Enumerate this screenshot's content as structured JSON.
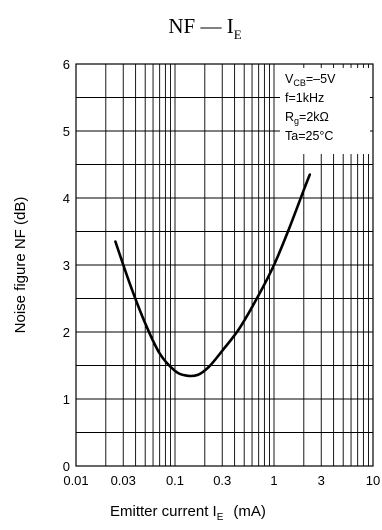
{
  "chart_data": {
    "type": "line",
    "title": {
      "main": "NF — I",
      "sub": "E"
    },
    "xlabel": {
      "main": "Emitter current  I",
      "sub": "E",
      "unit": "(mA)"
    },
    "ylabel": "Noise figure  NF   (dB)",
    "x_scale": "log",
    "xlim": [
      0.01,
      10
    ],
    "ylim": [
      0,
      6
    ],
    "x_ticks": [
      0.01,
      0.03,
      0.1,
      0.3,
      1,
      3,
      10
    ],
    "x_tick_labels": [
      "0.01",
      "0.03",
      "0.1",
      "0.3",
      "1",
      "3",
      "10"
    ],
    "y_ticks": [
      0,
      1,
      2,
      3,
      4,
      5,
      6
    ],
    "y_tick_labels": [
      "0",
      "1",
      "2",
      "3",
      "4",
      "5",
      "6"
    ],
    "grid": true,
    "conditions": [
      {
        "main": "V",
        "sub": "CB",
        "rest": "=–5V"
      },
      {
        "main": "f=1kHz",
        "sub": "",
        "rest": ""
      },
      {
        "main": "R",
        "sub": "g",
        "rest": "=2kΩ"
      },
      {
        "main": "Ta=25°C",
        "sub": "",
        "rest": ""
      }
    ],
    "legend_placement": "top-right",
    "series": [
      {
        "x": [
          0.025,
          0.035,
          0.05,
          0.07,
          0.1,
          0.13,
          0.17,
          0.22,
          0.3,
          0.45,
          0.7,
          1.0,
          1.4,
          2.0,
          2.3
        ],
        "y": [
          3.35,
          2.72,
          2.13,
          1.68,
          1.42,
          1.35,
          1.36,
          1.48,
          1.72,
          2.06,
          2.55,
          3.0,
          3.52,
          4.12,
          4.35
        ]
      }
    ]
  }
}
